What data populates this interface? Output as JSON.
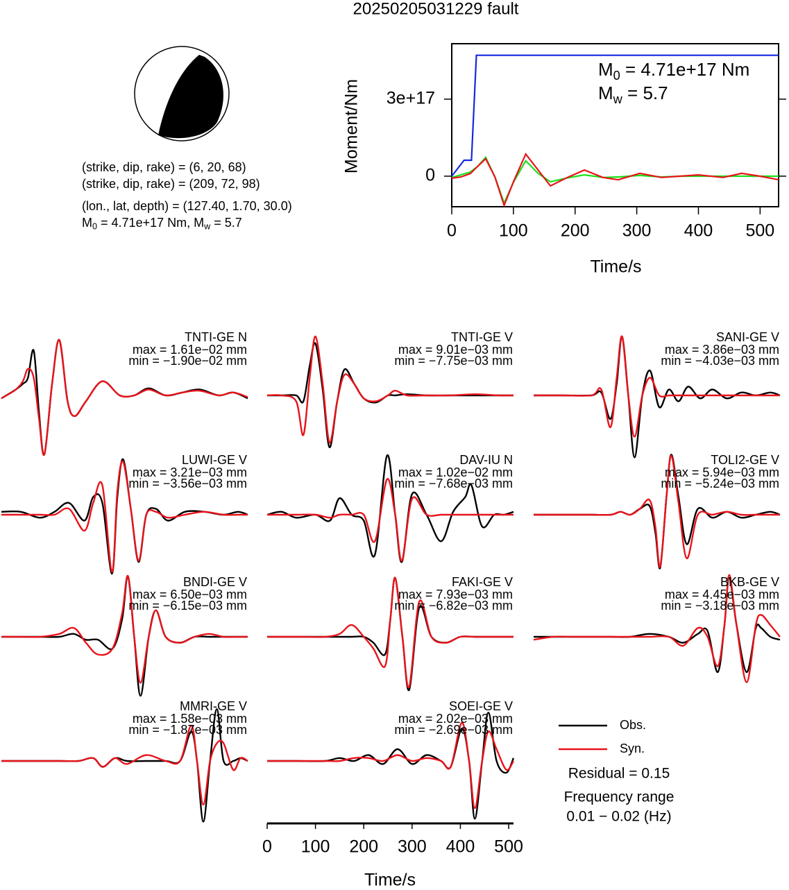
{
  "title": "20250205031229 fault",
  "beachball": {
    "lines": [
      "(strike, dip, rake) = (6, 20, 68)",
      "(strike, dip, rake) = (209, 72, 98)",
      "(lon., lat, depth) = (127.40, 1.70, 30.0)"
    ],
    "moment_line": [
      "M",
      "0",
      " = 4.71e+17 Nm, M",
      "w",
      " = 5.7"
    ]
  },
  "chart_data": [
    {
      "type": "line",
      "xlabel": "Time/s",
      "ylabel": "Moment/Nm",
      "xlim": [
        0,
        530
      ],
      "ylim": [
        -1.19e+17,
        5.16e+17
      ],
      "xticks": [
        0,
        100,
        200,
        300,
        400,
        500
      ],
      "yticks": [
        0,
        {
          "value": 3e+17,
          "label": "3e+17"
        }
      ],
      "annotations": [
        [
          "M",
          "0",
          " = 4.71e+17 Nm"
        ],
        [
          "M",
          "w",
          " = 5.7"
        ]
      ],
      "series": [
        {
          "color": "#18e018",
          "x": [
            0,
            15,
            30,
            42,
            55,
            70,
            85,
            100,
            120,
            140,
            160,
            185,
            215,
            245,
            270,
            305,
            340,
            370,
            400,
            440,
            470,
            500,
            530
          ],
          "values": [
            -5000000000000000.0,
            5000000000000000.0,
            1.6e+16,
            3.8e+16,
            7.3e+16,
            -3000000000000000.0,
            -1.05e+17,
            -2.4e+16,
            6e+16,
            1.1e+16,
            -2.2e+16,
            -8000000000000000.0,
            5000000000000000.0,
            -5000000000000000.0,
            -3000000000000000.0,
            3000000000000000.0,
            -3000000000000000.0,
            0,
            0,
            0,
            0,
            0,
            0
          ]
        },
        {
          "color": "#e8141b",
          "x": [
            0,
            15,
            30,
            42,
            55,
            70,
            85,
            100,
            120,
            140,
            160,
            185,
            215,
            245,
            270,
            305,
            340,
            370,
            400,
            440,
            470,
            500,
            530
          ],
          "values": [
            -8000000000000000.0,
            -3000000000000000.0,
            1e+16,
            3.8e+16,
            6.8e+16,
            -3000000000000000.0,
            -1.14e+17,
            -2.2e+16,
            8.6e+16,
            2.4e+16,
            -3.8e+16,
            -8000000000000000.0,
            2.4e+16,
            -5000000000000000.0,
            -1.4e+16,
            1.1e+16,
            -5000000000000000.0,
            0,
            5000000000000000.0,
            -5000000000000000.0,
            1.1e+16,
            0,
            -1.4e+16
          ]
        },
        {
          "color": "#1428e0",
          "x": [
            0,
            20,
            32,
            40,
            530
          ],
          "values": [
            0,
            6.2e+16,
            6.2e+16,
            4.71e+17,
            4.71e+17
          ]
        }
      ]
    },
    {
      "type": "waveform",
      "xlabel": "Time/s",
      "xlim": [
        0,
        510
      ],
      "xticks": [
        0,
        100,
        200,
        300,
        400,
        500
      ],
      "legend": [
        {
          "name": "Obs.",
          "color": "#000000"
        },
        {
          "name": "Syn.",
          "color": "#e8141b"
        }
      ],
      "residual": "Residual = 0.15",
      "freq_title": "Frequency range",
      "freq_range": "0.01 − 0.02 (Hz)",
      "panels": [
        {
          "station": "TNTI-GE N",
          "max_label": "max = 1.61e−02 mm",
          "min_label": "min = −1.90e−02 mm",
          "x": [
            0,
            30,
            45,
            55,
            67,
            78,
            89,
            105,
            120,
            137,
            152,
            175,
            209,
            245,
            275,
            305,
            340,
            375,
            410,
            450,
            480,
            510
          ],
          "obs": [
            -0.05,
            0.1,
            0.2,
            0.3,
            0.76,
            -0.3,
            -1.0,
            0.2,
            0.94,
            -0.1,
            -0.35,
            -0.1,
            0.24,
            0.0,
            0.0,
            0.12,
            0.0,
            0.05,
            0.1,
            0.0,
            0.05,
            -0.05
          ],
          "syn": [
            -0.05,
            0.1,
            0.25,
            0.45,
            0.3,
            -0.4,
            -1.0,
            0.2,
            0.94,
            -0.1,
            -0.35,
            -0.1,
            0.24,
            0.0,
            0.0,
            0.1,
            0.0,
            0.05,
            0.08,
            0.0,
            0.05,
            -0.03
          ]
        },
        {
          "station": "TNTI-GE V",
          "max_label": "max = 9.01e−03 mm",
          "min_label": "min = −7.75e−03 mm",
          "x": [
            0,
            30,
            60,
            75,
            88,
            100,
            115,
            129,
            145,
            160,
            180,
            200,
            225,
            250,
            265,
            290,
            330,
            380,
            430,
            480,
            510
          ],
          "obs": [
            0,
            0,
            0,
            -0.1,
            0.5,
            0.88,
            0.1,
            -0.88,
            -0.1,
            0.44,
            0.2,
            -0.05,
            -0.12,
            0,
            0,
            0.02,
            0,
            0,
            0,
            0,
            0
          ],
          "syn": [
            0,
            0,
            -0.1,
            -0.67,
            0.3,
            1.0,
            0.2,
            -0.8,
            -0.1,
            0.35,
            0.2,
            -0.05,
            -0.1,
            0,
            0.08,
            0,
            0,
            0,
            0.02,
            0,
            0
          ]
        },
        {
          "station": "SANI-GE V",
          "max_label": "max = 3.86e−03 mm",
          "min_label": "min = −4.03e−03 mm",
          "x": [
            0,
            60,
            120,
            140,
            159,
            172,
            183,
            196,
            209,
            225,
            241,
            260,
            280,
            300,
            320,
            345,
            370,
            400,
            430,
            460,
            490,
            510
          ],
          "obs": [
            0,
            0,
            0,
            0.05,
            -0.4,
            0.2,
            1.0,
            0,
            -1.05,
            0,
            0.42,
            -0.2,
            0.1,
            -0.1,
            0.15,
            -0.05,
            0.1,
            -0.05,
            0.05,
            0,
            0.05,
            0
          ],
          "syn": [
            0,
            0,
            0,
            0.1,
            -0.54,
            0.3,
            1.0,
            0,
            -0.7,
            0,
            0.3,
            0,
            0,
            0,
            0,
            0,
            0,
            0,
            0,
            0,
            0,
            0
          ]
        },
        {
          "station": "LUWI-GE V",
          "max_label": "max = 3.21e−03 mm",
          "min_label": "min = −3.56e−03 mm",
          "x": [
            0,
            40,
            80,
            110,
            140,
            172,
            190,
            209,
            229,
            240,
            252,
            268,
            284,
            300,
            320,
            345,
            380,
            420,
            460,
            490,
            510
          ],
          "obs": [
            0.05,
            0.05,
            -0.05,
            0.05,
            0.2,
            -0.1,
            0.3,
            0.2,
            -1.0,
            0.3,
            0.94,
            0.1,
            -0.8,
            0,
            0.1,
            -0.1,
            0.05,
            0.05,
            0,
            0.05,
            0
          ],
          "syn": [
            0,
            0,
            0,
            0,
            0.1,
            -0.27,
            0.2,
            0.5,
            -0.97,
            0.4,
            0.9,
            0.1,
            -0.78,
            0,
            0.05,
            -0.05,
            0,
            0.05,
            0,
            0,
            0
          ]
        },
        {
          "station": "DAV-IU N",
          "max_label": "max = 1.02e−02 mm",
          "min_label": "min = −7.68e−03 mm",
          "x": [
            0,
            30,
            60,
            100,
            130,
            150,
            175,
            200,
            223,
            248,
            265,
            279,
            300,
            330,
            360,
            385,
            410,
            423,
            445,
            470,
            490,
            510
          ],
          "obs": [
            0,
            0.05,
            -0.05,
            0,
            -0.1,
            0.28,
            0,
            -0.1,
            -0.68,
            1.0,
            0,
            -0.8,
            0.35,
            0,
            -0.45,
            0.05,
            0.3,
            0.5,
            -0.2,
            0,
            0,
            0.05
          ],
          "syn": [
            0,
            0,
            0,
            0,
            -0.05,
            0,
            0,
            0,
            -0.45,
            0.6,
            0,
            -0.78,
            0.27,
            0,
            0,
            0,
            0,
            0,
            0,
            0,
            0,
            0
          ]
        },
        {
          "station": "TOLI2-GE V",
          "max_label": "max = 5.94e−03 mm",
          "min_label": "min = −5.24e−03 mm",
          "x": [
            0,
            40,
            80,
            120,
            160,
            180,
            200,
            220,
            240,
            252,
            262,
            275,
            285,
            300,
            317,
            340,
            370,
            400,
            430,
            460,
            490,
            510
          ],
          "obs": [
            0,
            0,
            0,
            0,
            0,
            0.05,
            0,
            0.1,
            0.15,
            -0.3,
            -0.9,
            0.3,
            1.02,
            0.3,
            -0.5,
            0.1,
            -0.05,
            0.05,
            -0.05,
            0,
            0.05,
            0
          ],
          "syn": [
            0,
            0,
            0,
            0,
            0,
            0.05,
            0,
            0.1,
            0.25,
            -0.2,
            -0.88,
            0.3,
            1.0,
            0.2,
            -0.74,
            0,
            0,
            0.05,
            0,
            0,
            0,
            0
          ]
        },
        {
          "station": "BNDI-GE V",
          "max_label": "max = 6.50e−03 mm",
          "min_label": "min = −6.15e−03 mm",
          "x": [
            0,
            40,
            80,
            120,
            150,
            175,
            200,
            230,
            250,
            262,
            275,
            288,
            305,
            320,
            340,
            370,
            400,
            430,
            460,
            490,
            510
          ],
          "obs": [
            0,
            0,
            0,
            0,
            0.05,
            -0.05,
            -0.05,
            -0.2,
            0.3,
            1.03,
            0,
            -1.0,
            0,
            0.45,
            0,
            -0.1,
            0,
            0,
            0,
            0,
            0
          ],
          "syn": [
            0,
            0,
            0,
            0.05,
            0.15,
            -0.1,
            -0.3,
            -0.2,
            0.4,
            1.03,
            0,
            -0.78,
            0,
            0.45,
            0,
            -0.1,
            0,
            0.05,
            0,
            0,
            0
          ]
        },
        {
          "station": "FAKI-GE V",
          "max_label": "max = 7.93e−03 mm",
          "min_label": "min = −6.82e−03 mm",
          "x": [
            0,
            40,
            80,
            120,
            150,
            175,
            200,
            220,
            244,
            255,
            265,
            280,
            294,
            315,
            340,
            370,
            400,
            430,
            460,
            490,
            510
          ],
          "obs": [
            0,
            0,
            0,
            0,
            0,
            0,
            0,
            -0.1,
            -0.3,
            0.3,
            1.0,
            0,
            -0.9,
            0.5,
            0,
            -0.1,
            0,
            0,
            0,
            0,
            0
          ],
          "syn": [
            0,
            0,
            0,
            0,
            0.05,
            0.2,
            0,
            -0.2,
            -0.5,
            0.3,
            1.0,
            0,
            -0.85,
            0.6,
            0,
            -0.1,
            0,
            0,
            0,
            0,
            0
          ]
        },
        {
          "station": "BKB-GE V",
          "max_label": "max = 4.45e−03 mm",
          "min_label": "min = −3.18e−03 mm",
          "x": [
            0,
            40,
            80,
            120,
            160,
            200,
            240,
            280,
            310,
            340,
            360,
            381,
            395,
            405,
            420,
            441,
            460,
            471,
            490,
            510
          ],
          "obs": [
            0,
            0,
            0,
            0,
            0,
            0,
            0.05,
            0,
            -0.1,
            0.05,
            0.1,
            -0.6,
            0.2,
            1.0,
            0.2,
            -0.6,
            0.15,
            0.15,
            0,
            -0.05
          ],
          "syn": [
            -0.05,
            0,
            0,
            0,
            0,
            0,
            0,
            0,
            -0.15,
            0.15,
            0,
            -0.5,
            0.2,
            1.05,
            0.2,
            -0.77,
            0.2,
            0.37,
            0.2,
            0
          ]
        },
        {
          "station": "MMRI-GE V",
          "max_label": "max = 1.58e−03 mm",
          "min_label": "min = −1.87e−03 mm",
          "x": [
            0,
            60,
            120,
            160,
            190,
            210,
            235,
            260,
            300,
            340,
            370,
            393,
            405,
            418,
            432,
            446,
            460,
            480,
            495,
            510
          ],
          "obs": [
            0,
            0,
            0,
            0,
            0.05,
            -0.1,
            0.05,
            0,
            0,
            0,
            0,
            0.5,
            0,
            -1.03,
            0,
            0.88,
            0,
            0,
            0.05,
            0
          ],
          "syn": [
            0,
            0,
            0,
            0,
            0.05,
            -0.1,
            0.05,
            -0.05,
            0.1,
            0,
            0,
            0.6,
            0,
            -0.74,
            0,
            0.3,
            0.3,
            -0.15,
            0.05,
            0
          ]
        },
        {
          "station": "SOEI-GE V",
          "max_label": "max = 2.02e−03 mm",
          "min_label": "min = −2.69e−03 mm",
          "x": [
            0,
            60,
            120,
            150,
            180,
            210,
            240,
            270,
            300,
            330,
            360,
            380,
            403,
            418,
            430,
            445,
            458,
            475,
            495,
            510
          ],
          "obs": [
            0,
            0,
            0,
            0.05,
            0,
            0.1,
            -0.05,
            0.2,
            -0.05,
            0.1,
            0,
            -0.1,
            0.55,
            0,
            -0.98,
            0,
            0.82,
            0,
            -0.2,
            0.05
          ],
          "syn": [
            0,
            0,
            0,
            0,
            0.05,
            0.05,
            0,
            0.1,
            0,
            0.05,
            0,
            -0.1,
            0.65,
            0,
            -0.8,
            0,
            0.5,
            0.2,
            -0.15,
            0
          ]
        }
      ]
    }
  ]
}
